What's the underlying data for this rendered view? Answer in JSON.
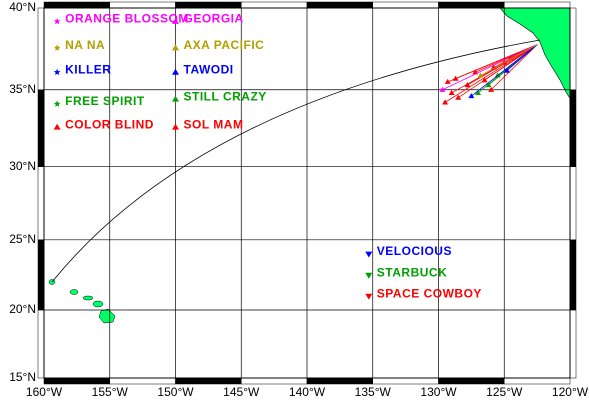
{
  "map": {
    "lonlim": [
      -160,
      -120
    ],
    "latlim": [
      15,
      40
    ],
    "lonticks": [
      {
        "value": -160,
        "label": "160°W"
      },
      {
        "value": -155,
        "label": "155°W"
      },
      {
        "value": -150,
        "label": "150°W"
      },
      {
        "value": -145,
        "label": "145°W"
      },
      {
        "value": -140,
        "label": "140°W"
      },
      {
        "value": -135,
        "label": "135°W"
      },
      {
        "value": -130,
        "label": "130°W"
      },
      {
        "value": -125,
        "label": "125°W"
      },
      {
        "value": -120,
        "label": "120°W"
      }
    ],
    "latticks": [
      {
        "value": 15,
        "label": "15°N"
      },
      {
        "value": 20,
        "label": "20°N"
      },
      {
        "value": 25,
        "label": "25°N"
      },
      {
        "value": 30,
        "label": "30°N"
      },
      {
        "value": 35,
        "label": "35°N"
      },
      {
        "value": 40,
        "label": "40°N"
      }
    ],
    "grid": true,
    "boats": [
      {
        "name": "ORANGE BLOSSOM",
        "color": "#ff00ff",
        "marker": "star",
        "lon": -159,
        "lat": 39.2
      },
      {
        "name": "NA NA",
        "color": "#b0a000",
        "marker": "star",
        "lon": -159,
        "lat": 37.6
      },
      {
        "name": "KILLER",
        "color": "#0000ff",
        "marker": "star",
        "lon": -159,
        "lat": 36.1
      },
      {
        "name": "FREE SPIRIT",
        "color": "#00a000",
        "marker": "star",
        "lon": -159,
        "lat": 34.1
      },
      {
        "name": "COLOR BLIND",
        "color": "#ff0000",
        "marker": "triangle",
        "lon": -159,
        "lat": 32.6
      },
      {
        "name": "GEORGIA",
        "color": "#ff00ff",
        "marker": "triangle",
        "lon": -150,
        "lat": 39.2
      },
      {
        "name": "AXA PACIFIC",
        "color": "#b0a000",
        "marker": "triangle",
        "lon": -150,
        "lat": 37.6
      },
      {
        "name": "TAWODI",
        "color": "#0000ff",
        "marker": "triangle",
        "lon": -150,
        "lat": 36.1
      },
      {
        "name": "STILL CRAZY",
        "color": "#00a000",
        "marker": "triangle",
        "lon": -150,
        "lat": 34.4
      },
      {
        "name": "SOL MAM",
        "color": "#ff0000",
        "marker": "triangle",
        "lon": -150,
        "lat": 32.6
      },
      {
        "name": "VELOCIOUS",
        "color": "#0000ff",
        "marker": "down",
        "lon": -135.3,
        "lat": 24.0
      },
      {
        "name": "STARBUCK",
        "color": "#00a000",
        "marker": "down",
        "lon": -135.3,
        "lat": 22.5
      },
      {
        "name": "SPACE COWBOY",
        "color": "#ff0000",
        "marker": "down",
        "lon": -135.3,
        "lat": 21.0
      }
    ],
    "finish": {
      "lon": -122.5,
      "lat": 37.8
    },
    "positions": [
      {
        "lon": -129.5,
        "lat": 34.2,
        "color": "#ff0000"
      },
      {
        "lon": -129,
        "lat": 34.8,
        "color": "#ff0000"
      },
      {
        "lon": -128.5,
        "lat": 34.5,
        "color": "#ff0000"
      },
      {
        "lon": -127.8,
        "lat": 35.3,
        "color": "#ff0000"
      },
      {
        "lon": -128.7,
        "lat": 35.7,
        "color": "#ff0000"
      },
      {
        "lon": -127.2,
        "lat": 36.1,
        "color": "#ff0000"
      },
      {
        "lon": -126.5,
        "lat": 35.6,
        "color": "#ff0000"
      },
      {
        "lon": -125.8,
        "lat": 36.4,
        "color": "#ff0000"
      },
      {
        "lon": -125,
        "lat": 36.7,
        "color": "#ff0000"
      },
      {
        "lon": -124.5,
        "lat": 37,
        "color": "#ff0000"
      },
      {
        "lon": -126,
        "lat": 35,
        "color": "#ff0000"
      },
      {
        "lon": -129.3,
        "lat": 35.5,
        "color": "#ff0000"
      },
      {
        "lon": -127,
        "lat": 34.8,
        "color": "#00a000"
      },
      {
        "lon": -126.2,
        "lat": 35.3,
        "color": "#00a000"
      },
      {
        "lon": -125.5,
        "lat": 35.9,
        "color": "#00a000"
      },
      {
        "lon": -127.5,
        "lat": 34.6,
        "color": "#0000ff"
      },
      {
        "lon": -124.8,
        "lat": 36.2,
        "color": "#0000ff"
      },
      {
        "lon": -129.7,
        "lat": 35,
        "color": "#ff00ff"
      },
      {
        "lon": -126.8,
        "lat": 35.9,
        "color": "#b0a000"
      }
    ]
  }
}
